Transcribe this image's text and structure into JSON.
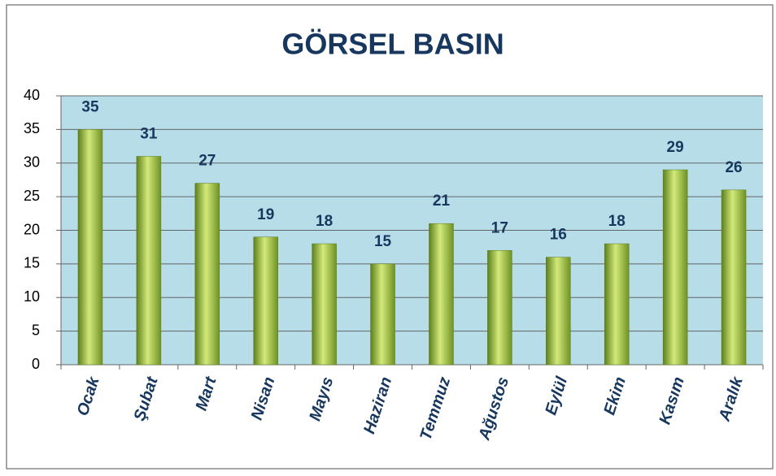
{
  "chart_data": {
    "type": "bar",
    "title": "GÖRSEL BASIN",
    "categories": [
      "Ocak",
      "Şubat",
      "Mart",
      "Nisan",
      "Mayıs",
      "Haziran",
      "Temmuz",
      "Ağustos",
      "Eylül",
      "Ekim",
      "Kasım",
      "Aralık"
    ],
    "values": [
      35,
      31,
      27,
      19,
      18,
      15,
      21,
      17,
      16,
      18,
      29,
      26
    ],
    "color": "#9bbb3b",
    "ylim": [
      0,
      40
    ],
    "yticks": [
      0,
      5,
      10,
      15,
      20,
      25,
      30,
      35,
      40
    ],
    "grid": true
  }
}
